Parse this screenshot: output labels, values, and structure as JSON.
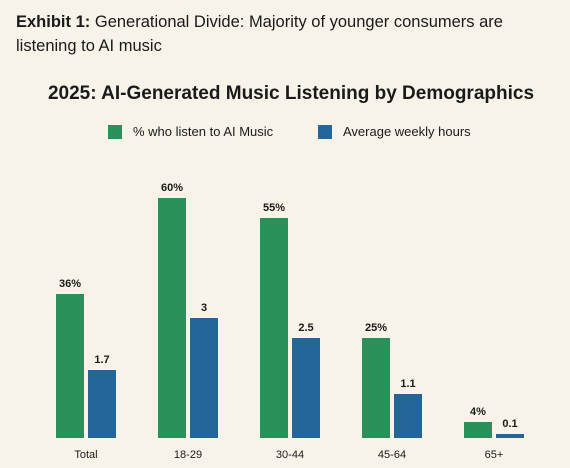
{
  "exhibit": {
    "label": "Exhibit 1:",
    "text": "Generational Divide: Majority of younger consumers are listening to AI music"
  },
  "colors": {
    "listen": "#2a915a",
    "hours": "#246699",
    "background": "#f8f3e9"
  },
  "chart_data": {
    "type": "bar",
    "title": "2025: AI-Generated Music Listening by Demographics",
    "categories": [
      "Total",
      "18-29",
      "30-44",
      "45-64",
      "65+"
    ],
    "series": [
      {
        "name": "% who listen to AI Music",
        "values": [
          36,
          60,
          55,
          25,
          4
        ],
        "labels": [
          "36%",
          "60%",
          "55%",
          "25%",
          "4%"
        ]
      },
      {
        "name": "Average weekly hours",
        "values": [
          1.7,
          3,
          2.5,
          1.1,
          0.1
        ],
        "labels": [
          "1.7",
          "3",
          "2.5",
          "1.1",
          "0.1"
        ]
      }
    ],
    "legend_position": "top",
    "grid": false
  }
}
